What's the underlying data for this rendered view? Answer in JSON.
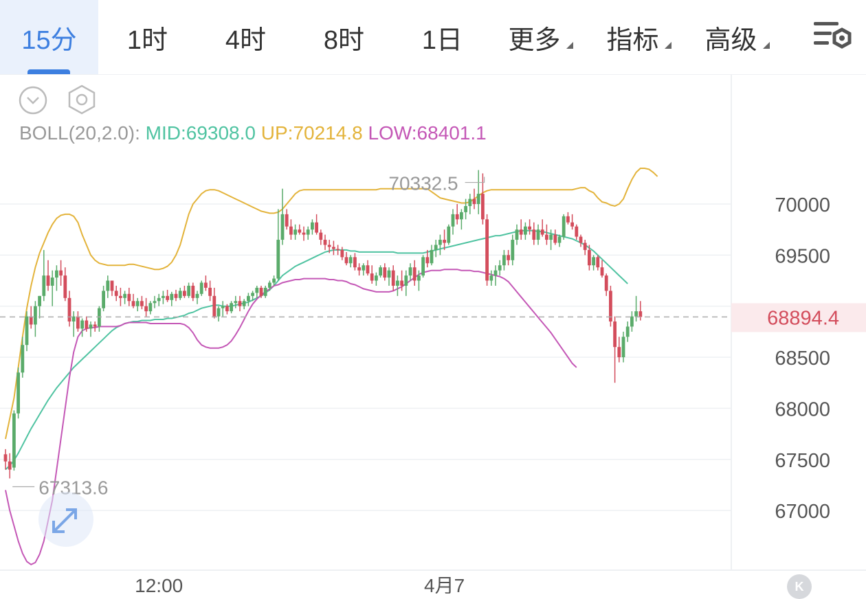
{
  "tabs": [
    {
      "label": "15分",
      "active": true,
      "has_menu": false
    },
    {
      "label": "1时",
      "active": false,
      "has_menu": false
    },
    {
      "label": "4时",
      "active": false,
      "has_menu": false
    },
    {
      "label": "8时",
      "active": false,
      "has_menu": false
    },
    {
      "label": "1日",
      "active": false,
      "has_menu": false
    },
    {
      "label": "更多",
      "active": false,
      "has_menu": true
    },
    {
      "label": "指标",
      "active": false,
      "has_menu": true
    },
    {
      "label": "高级",
      "active": false,
      "has_menu": true
    }
  ],
  "icons": {
    "settings": "chart-settings-icon",
    "collapse": "chevron-down-circle-icon",
    "indicator": "hexagon-settings-icon",
    "expand": "expand-arrows-icon",
    "kline": "kline-logo-icon"
  },
  "indicator": {
    "name": "BOLL(20,2.0):",
    "mid": "MID:69308.0",
    "up": "UP:70214.8",
    "low": "LOW:68401.1"
  },
  "colors": {
    "accent": "#3d7fe0",
    "up_candle": "#5aab6a",
    "down_candle": "#d34d5c",
    "mid_line": "#4fc3a1",
    "up_line": "#e3b33a",
    "low_line": "#c457b6",
    "current_price": "#d34d5c"
  },
  "chart_data": {
    "type": "candlestick",
    "y_ticks": [
      70000,
      69500,
      68500,
      68000,
      67500,
      67000
    ],
    "y_ticks_text": [
      "70000",
      "69500",
      "68500",
      "68000",
      "67500",
      "67000"
    ],
    "x_labels": [
      "12:00",
      "4月7"
    ],
    "x_label_index": [
      36,
      103
    ],
    "current_price": 68894.4,
    "current_price_label": "68894.4",
    "max_marker": {
      "value": 70332.5,
      "label": "70332.5",
      "index": 113
    },
    "min_marker": {
      "value": 67313.6,
      "label": "67313.6",
      "index": 1
    },
    "candle_spacing": 6.2,
    "candles": [
      [
        67550,
        67600,
        67400,
        67480
      ],
      [
        67480,
        67560,
        67313.6,
        67400
      ],
      [
        67420,
        67980,
        67390,
        67950
      ],
      [
        67950,
        68400,
        67900,
        68350
      ],
      [
        68350,
        68700,
        68300,
        68620
      ],
      [
        68620,
        68950,
        68560,
        68900
      ],
      [
        68900,
        69000,
        68780,
        68820
      ],
      [
        68820,
        69050,
        68700,
        69000
      ],
      [
        69000,
        69100,
        68880,
        69100
      ],
      [
        69100,
        69550,
        69050,
        69300
      ],
      [
        69300,
        69450,
        69150,
        69200
      ],
      [
        69200,
        69350,
        69000,
        69280
      ],
      [
        69280,
        69400,
        69150,
        69350
      ],
      [
        69350,
        69450,
        69200,
        69300
      ],
      [
        69300,
        69380,
        69050,
        69080
      ],
      [
        69080,
        69150,
        68800,
        68850
      ],
      [
        68850,
        68950,
        68700,
        68900
      ],
      [
        68900,
        68950,
        68750,
        68780
      ],
      [
        68780,
        68880,
        68700,
        68860
      ],
      [
        68860,
        68900,
        68750,
        68780
      ],
      [
        68780,
        68850,
        68700,
        68820
      ],
      [
        68820,
        68850,
        68750,
        68800
      ],
      [
        68800,
        69000,
        68750,
        68980
      ],
      [
        68980,
        69200,
        68950,
        69150
      ],
      [
        69150,
        69300,
        69080,
        69250
      ],
      [
        69250,
        69250,
        69100,
        69150
      ],
      [
        69150,
        69200,
        69050,
        69100
      ],
      [
        69100,
        69180,
        69000,
        69080
      ],
      [
        69080,
        69150,
        69020,
        69120
      ],
      [
        69120,
        69180,
        69000,
        69050
      ],
      [
        69050,
        69120,
        68980,
        69000
      ],
      [
        69000,
        69080,
        68950,
        69050
      ],
      [
        69050,
        69100,
        68970,
        69000
      ],
      [
        69000,
        69080,
        68900,
        68950
      ],
      [
        68950,
        69050,
        68920,
        69030
      ],
      [
        69030,
        69100,
        68980,
        69050
      ],
      [
        69050,
        69120,
        69000,
        69080
      ],
      [
        69080,
        69150,
        69020,
        69100
      ],
      [
        69100,
        69160,
        69040,
        69060
      ],
      [
        69060,
        69140,
        69000,
        69120
      ],
      [
        69120,
        69160,
        69050,
        69080
      ],
      [
        69080,
        69180,
        69060,
        69150
      ],
      [
        69150,
        69200,
        69080,
        69100
      ],
      [
        69100,
        69230,
        69080,
        69200
      ],
      [
        69200,
        69230,
        69050,
        69080
      ],
      [
        69080,
        69150,
        69020,
        69120
      ],
      [
        69120,
        69250,
        69100,
        69230
      ],
      [
        69230,
        69300,
        69150,
        69180
      ],
      [
        69180,
        69250,
        69050,
        69100
      ],
      [
        69100,
        69180,
        68880,
        68900
      ],
      [
        68900,
        69000,
        68850,
        68980
      ],
      [
        68980,
        69050,
        68900,
        69000
      ],
      [
        69000,
        69020,
        68920,
        68950
      ],
      [
        68950,
        69050,
        68930,
        69030
      ],
      [
        69030,
        69100,
        68980,
        69050
      ],
      [
        69050,
        69100,
        68950,
        69000
      ],
      [
        69000,
        69070,
        68970,
        69050
      ],
      [
        69050,
        69130,
        69000,
        69100
      ],
      [
        69100,
        69150,
        69050,
        69130
      ],
      [
        69130,
        69200,
        69080,
        69180
      ],
      [
        69180,
        69200,
        69080,
        69100
      ],
      [
        69100,
        69200,
        69080,
        69180
      ],
      [
        69180,
        69250,
        69150,
        69230
      ],
      [
        69230,
        69300,
        69200,
        69270
      ],
      [
        69270,
        69950,
        69250,
        69650
      ],
      [
        69650,
        70150,
        69600,
        69900
      ],
      [
        69900,
        69950,
        69750,
        69780
      ],
      [
        69780,
        69850,
        69650,
        69700
      ],
      [
        69700,
        69800,
        69650,
        69750
      ],
      [
        69750,
        69800,
        69700,
        69720
      ],
      [
        69720,
        69780,
        69640,
        69700
      ],
      [
        69700,
        69780,
        69650,
        69750
      ],
      [
        69750,
        69850,
        69700,
        69820
      ],
      [
        69820,
        69900,
        69700,
        69720
      ],
      [
        69720,
        69750,
        69600,
        69650
      ],
      [
        69650,
        69700,
        69550,
        69600
      ],
      [
        69600,
        69650,
        69520,
        69580
      ],
      [
        69580,
        69640,
        69500,
        69560
      ],
      [
        69560,
        69600,
        69500,
        69550
      ],
      [
        69550,
        69580,
        69450,
        69480
      ],
      [
        69480,
        69530,
        69400,
        69420
      ],
      [
        69420,
        69500,
        69380,
        69480
      ],
      [
        69480,
        69520,
        69350,
        69380
      ],
      [
        69380,
        69420,
        69300,
        69350
      ],
      [
        69350,
        69420,
        69300,
        69400
      ],
      [
        69400,
        69450,
        69300,
        69320
      ],
      [
        69320,
        69400,
        69220,
        69250
      ],
      [
        69250,
        69330,
        69200,
        69300
      ],
      [
        69300,
        69400,
        69280,
        69380
      ],
      [
        69380,
        69420,
        69250,
        69280
      ],
      [
        69280,
        69380,
        69200,
        69350
      ],
      [
        69350,
        69400,
        69150,
        69200
      ],
      [
        69200,
        69300,
        69100,
        69250
      ],
      [
        69250,
        69350,
        69150,
        69200
      ],
      [
        69200,
        69350,
        69100,
        69300
      ],
      [
        69300,
        69420,
        69250,
        69380
      ],
      [
        69380,
        69450,
        69200,
        69250
      ],
      [
        69250,
        69350,
        69150,
        69300
      ],
      [
        69300,
        69500,
        69280,
        69480
      ],
      [
        69480,
        69550,
        69380,
        69420
      ],
      [
        69420,
        69600,
        69400,
        69550
      ],
      [
        69550,
        69650,
        69480,
        69600
      ],
      [
        69600,
        69700,
        69500,
        69650
      ],
      [
        69650,
        69750,
        69550,
        69620
      ],
      [
        69620,
        69800,
        69600,
        69780
      ],
      [
        69780,
        69950,
        69700,
        69900
      ],
      [
        69900,
        70000,
        69800,
        69850
      ],
      [
        69850,
        69950,
        69750,
        69920
      ],
      [
        69920,
        70050,
        69850,
        69980
      ],
      [
        69980,
        70100,
        69900,
        70050
      ],
      [
        70050,
        70150,
        69950,
        70000
      ],
      [
        70000,
        70332.5,
        69900,
        70100
      ],
      [
        70100,
        70300,
        69800,
        69850
      ],
      [
        69850,
        69900,
        69200,
        69250
      ],
      [
        69250,
        69350,
        69200,
        69300
      ],
      [
        69300,
        69400,
        69200,
        69350
      ],
      [
        69350,
        69450,
        69300,
        69400
      ],
      [
        69400,
        69550,
        69350,
        69500
      ],
      [
        69500,
        69550,
        69400,
        69450
      ],
      [
        69450,
        69700,
        69400,
        69650
      ],
      [
        69650,
        69800,
        69600,
        69750
      ],
      [
        69750,
        69850,
        69650,
        69700
      ],
      [
        69700,
        69820,
        69650,
        69780
      ],
      [
        69780,
        69850,
        69700,
        69750
      ],
      [
        69750,
        69820,
        69600,
        69650
      ],
      [
        69650,
        69800,
        69600,
        69750
      ],
      [
        69750,
        69850,
        69680,
        69700
      ],
      [
        69700,
        69800,
        69600,
        69650
      ],
      [
        69650,
        69750,
        69550,
        69700
      ],
      [
        69700,
        69750,
        69600,
        69620
      ],
      [
        69620,
        69700,
        69580,
        69680
      ],
      [
        69680,
        69900,
        69650,
        69880
      ],
      [
        69880,
        69920,
        69800,
        69820
      ],
      [
        69820,
        69900,
        69750,
        69780
      ],
      [
        69780,
        69800,
        69650,
        69680
      ],
      [
        69680,
        69700,
        69580,
        69620
      ],
      [
        69620,
        69650,
        69500,
        69550
      ],
      [
        69550,
        69600,
        69350,
        69400
      ],
      [
        69400,
        69500,
        69350,
        69480
      ],
      [
        69480,
        69500,
        69350,
        69380
      ],
      [
        69380,
        69450,
        69280,
        69300
      ],
      [
        69300,
        69320,
        69100,
        69150
      ],
      [
        69150,
        69200,
        68800,
        68850
      ],
      [
        68850,
        68900,
        68250,
        68600
      ],
      [
        68600,
        68700,
        68450,
        68500
      ],
      [
        68500,
        68750,
        68450,
        68700
      ],
      [
        68700,
        68850,
        68650,
        68800
      ],
      [
        68800,
        68950,
        68750,
        68900
      ],
      [
        68900,
        69100,
        68850,
        68950
      ],
      [
        68950,
        69050,
        68860,
        68894.4
      ]
    ],
    "mid": [
      67400,
      67440,
      67490,
      67560,
      67640,
      67720,
      67800,
      67870,
      67940,
      68010,
      68080,
      68140,
      68200,
      68250,
      68300,
      68350,
      68400,
      68440,
      68480,
      68520,
      68560,
      68600,
      68640,
      68680,
      68720,
      68760,
      68790,
      68810,
      68830,
      68840,
      68850,
      68850,
      68860,
      68860,
      68860,
      68870,
      68870,
      68870,
      68880,
      68880,
      68890,
      68900,
      68910,
      68930,
      68940,
      68960,
      68980,
      68990,
      69000,
      69010,
      69010,
      69000,
      69000,
      69000,
      69010,
      69020,
      69030,
      69040,
      69060,
      69080,
      69100,
      69130,
      69160,
      69200,
      69250,
      69300,
      69330,
      69360,
      69390,
      69410,
      69430,
      69450,
      69470,
      69490,
      69510,
      69530,
      69540,
      69550,
      69550,
      69550,
      69550,
      69540,
      69540,
      69530,
      69530,
      69530,
      69530,
      69530,
      69530,
      69530,
      69530,
      69530,
      69520,
      69520,
      69520,
      69520,
      69520,
      69520,
      69520,
      69530,
      69540,
      69550,
      69560,
      69570,
      69580,
      69590,
      69600,
      69610,
      69620,
      69630,
      69640,
      69650,
      69660,
      69670,
      69680,
      69690,
      69690,
      69700,
      69710,
      69720,
      69730,
      69740,
      69740,
      69740,
      69740,
      69730,
      69730,
      69720,
      69710,
      69700,
      69690,
      69680,
      69670,
      69660,
      69640,
      69620,
      69600,
      69570,
      69540,
      69500,
      69460,
      69420,
      69380,
      69340,
      69300,
      69260,
      69220
    ],
    "up": [
      67700,
      67900,
      68100,
      68400,
      68700,
      68980,
      69200,
      69380,
      69520,
      69620,
      69720,
      69800,
      69860,
      69890,
      69900,
      69900,
      69880,
      69820,
      69700,
      69600,
      69500,
      69450,
      69420,
      69410,
      69400,
      69400,
      69400,
      69400,
      69400,
      69410,
      69410,
      69400,
      69390,
      69380,
      69370,
      69360,
      69360,
      69370,
      69390,
      69430,
      69500,
      69600,
      69750,
      69900,
      70000,
      70050,
      70100,
      70130,
      70140,
      70140,
      70130,
      70110,
      70090,
      70070,
      70050,
      70030,
      70010,
      69990,
      69970,
      69950,
      69930,
      69920,
      69910,
      69910,
      69920,
      69950,
      70000,
      70050,
      70100,
      70130,
      70140,
      70140,
      70140,
      70140,
      70140,
      70140,
      70140,
      70140,
      70140,
      70140,
      70140,
      70140,
      70140,
      70140,
      70140,
      70140,
      70140,
      70140,
      70150,
      70150,
      70150,
      70150,
      70150,
      70150,
      70150,
      70150,
      70150,
      70150,
      70150,
      70150,
      70120,
      70090,
      70060,
      70050,
      70040,
      70030,
      70020,
      70010,
      70010,
      70020,
      70050,
      70080,
      70110,
      70130,
      70140,
      70140,
      70140,
      70140,
      70140,
      70140,
      70140,
      70140,
      70140,
      70140,
      70140,
      70140,
      70140,
      70140,
      70140,
      70140,
      70140,
      70140,
      70140,
      70140,
      70150,
      70160,
      70160,
      70130,
      70110,
      70060,
      70020,
      70010,
      69990,
      69980,
      70000,
      70050,
      70150,
      70240,
      70310,
      70350,
      70350,
      70340,
      70310,
      70270
    ],
    "low": [
      67200,
      67000,
      66850,
      66700,
      66580,
      66500,
      66470,
      66490,
      66570,
      66700,
      66900,
      67100,
      67400,
      67700,
      68000,
      68300,
      68550,
      68700,
      68760,
      68780,
      68790,
      68790,
      68800,
      68800,
      68800,
      68800,
      68800,
      68810,
      68830,
      68840,
      68840,
      68840,
      68840,
      68840,
      68830,
      68830,
      68830,
      68830,
      68830,
      68830,
      68830,
      68830,
      68820,
      68790,
      68740,
      68670,
      68620,
      68600,
      68590,
      68590,
      68590,
      68600,
      68620,
      68660,
      68720,
      68790,
      68870,
      68950,
      69020,
      69070,
      69110,
      69140,
      69170,
      69200,
      69210,
      69230,
      69240,
      69250,
      69260,
      69260,
      69270,
      69270,
      69270,
      69270,
      69270,
      69270,
      69260,
      69260,
      69250,
      69250,
      69240,
      69220,
      69210,
      69190,
      69170,
      69160,
      69150,
      69140,
      69140,
      69140,
      69140,
      69150,
      69170,
      69190,
      69220,
      69250,
      69280,
      69310,
      69330,
      69340,
      69350,
      69350,
      69350,
      69360,
      69360,
      69360,
      69360,
      69350,
      69350,
      69350,
      69340,
      69340,
      69330,
      69320,
      69310,
      69300,
      69290,
      69270,
      69240,
      69190,
      69140,
      69090,
      69040,
      68990,
      68940,
      68890,
      68840,
      68790,
      68740,
      68680,
      68620,
      68560,
      68500,
      68440,
      68400
    ]
  }
}
